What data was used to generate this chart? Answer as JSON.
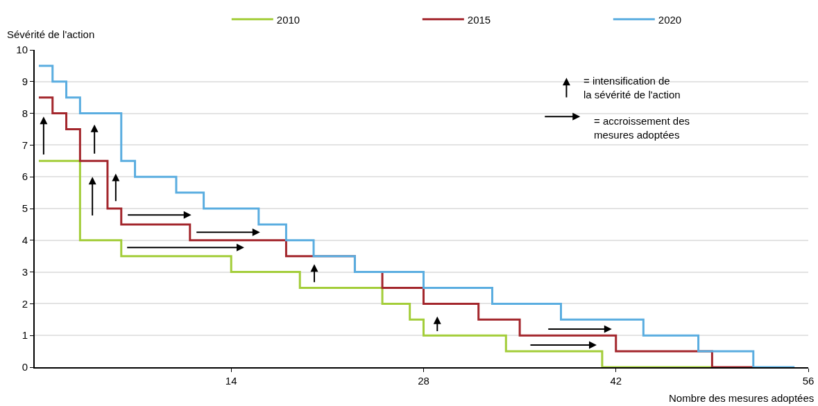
{
  "chart_data": {
    "type": "step",
    "xlabel": "Nombre des mesures adoptées",
    "ylabel": "Sévérité de l'action",
    "series": [
      {
        "name": "2010",
        "color": "#a3cd39",
        "x": [
          0,
          3,
          6,
          14,
          19,
          25,
          27,
          28,
          34,
          41,
          49
        ],
        "values": [
          6.5,
          4,
          3.5,
          3,
          2.5,
          2,
          1.5,
          1,
          0.5,
          0,
          0
        ]
      },
      {
        "name": "2015",
        "color": "#a3262c",
        "x": [
          0,
          1,
          2,
          3,
          5,
          6,
          11,
          18,
          23,
          25,
          28,
          32,
          35,
          42,
          49,
          52
        ],
        "values": [
          8.5,
          8,
          7.5,
          6.5,
          5,
          4.5,
          4,
          3.5,
          3,
          2.5,
          2,
          1.5,
          1,
          0.5,
          0,
          0
        ]
      },
      {
        "name": "2020",
        "color": "#5aade0",
        "x": [
          0,
          1,
          2,
          3,
          6,
          7,
          10,
          12,
          16,
          18,
          20,
          23,
          28,
          33,
          38,
          44,
          48,
          52,
          55
        ],
        "values": [
          9.5,
          9,
          8.5,
          8,
          6.5,
          6,
          5.5,
          5,
          4.5,
          4,
          3.5,
          3,
          2.5,
          2,
          1.5,
          1,
          0.5,
          0,
          0
        ]
      }
    ],
    "xlim": [
      -0.3,
      56
    ],
    "xticks": [
      14,
      28,
      42,
      56
    ],
    "ylim": [
      0,
      10
    ],
    "yticks": [
      0,
      1,
      2,
      3,
      4,
      5,
      6,
      7,
      8,
      9,
      10
    ],
    "grid": "y",
    "legend": "top",
    "marker": "none",
    "line_style": "solid",
    "annotations": [
      "= intensification de\nla sévérité de l'action",
      "= accroissement des\nmesures adoptées"
    ]
  }
}
